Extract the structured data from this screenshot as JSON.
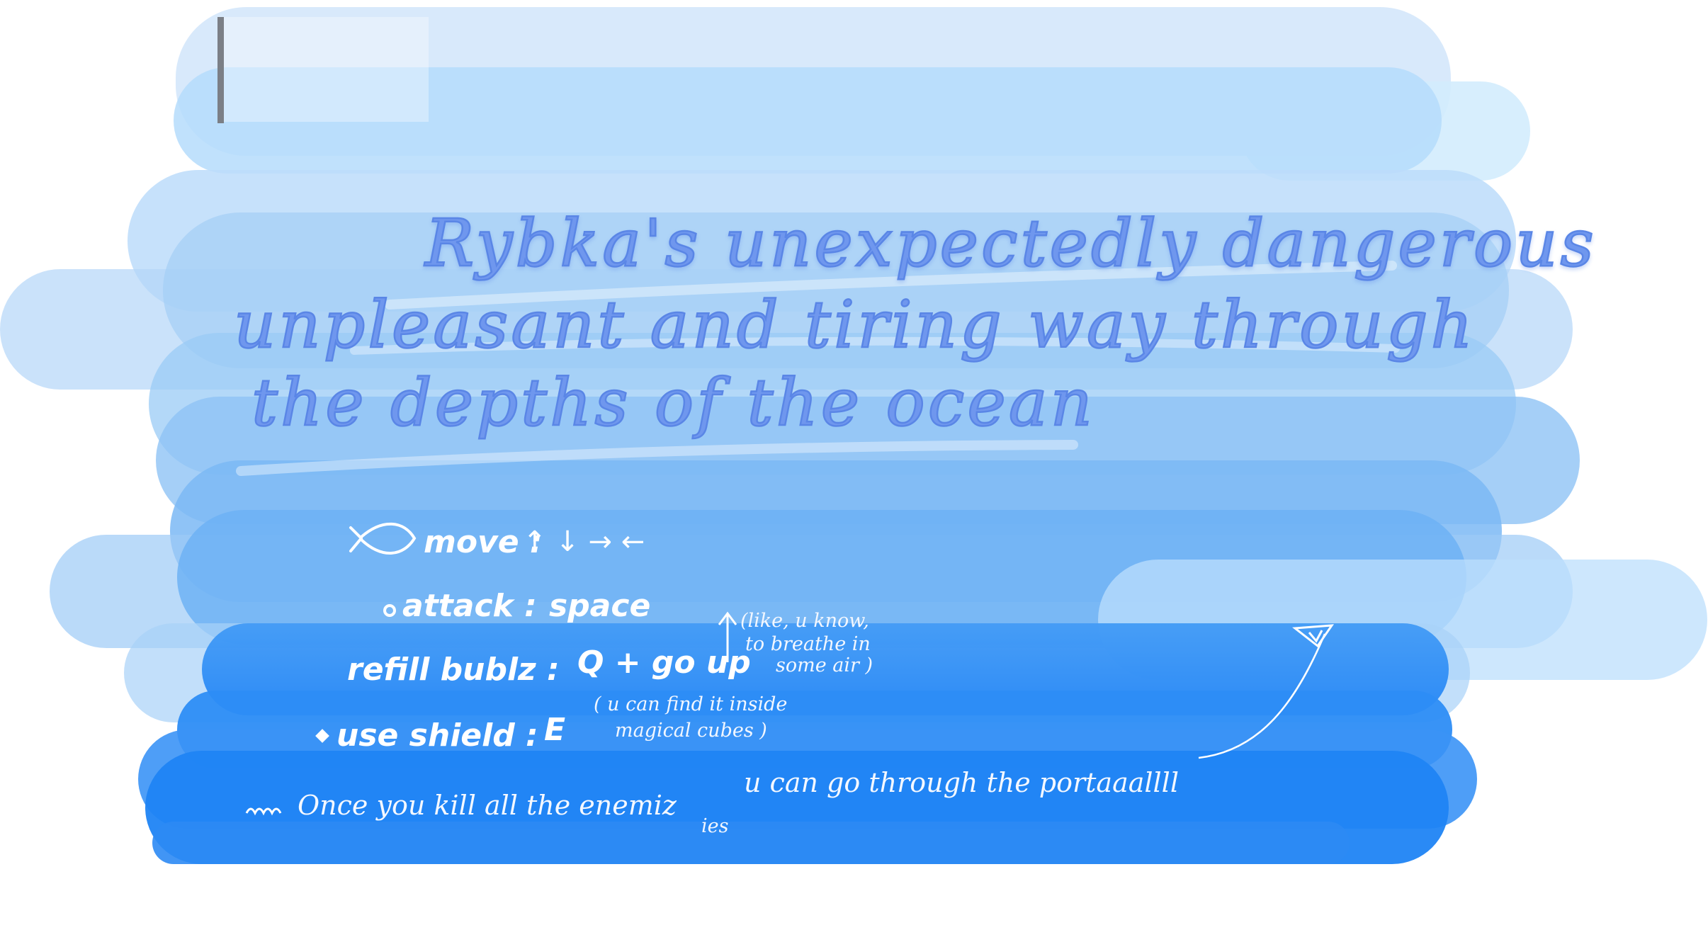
{
  "title": {
    "line1": "Rybka's unexpectedly dangerous",
    "line2": "unpleasant and tiring way through",
    "line3": "the depths of the ocean"
  },
  "controls": {
    "move": {
      "label": "move :",
      "keys": "↑ ↓ → ←"
    },
    "attack": {
      "label": "attack :",
      "key": "space"
    },
    "refill": {
      "label": "refill bublz :",
      "key": "Q + go up",
      "note_line1": "(like, u know,",
      "note_line2": "to breathe in",
      "note_line3": "some air )"
    },
    "shield": {
      "label": "use shield :",
      "key": "E",
      "note_line1": "( u can find it inside",
      "note_line2": "magical cubes )"
    }
  },
  "footer": {
    "text_part1": "Once you kill all the enemiz",
    "text_fix": "ies",
    "text_part2": "u can go through the portaaallll"
  },
  "colors": {
    "title": "#6f97ee",
    "wash_light": "#cfe4fb",
    "wash_mid": "#8fc2f6",
    "wash_deep": "#2a8cf7"
  },
  "icons": [
    "fish-icon",
    "bubble-icon",
    "shield-icon",
    "portal-icon",
    "wave-icon"
  ]
}
